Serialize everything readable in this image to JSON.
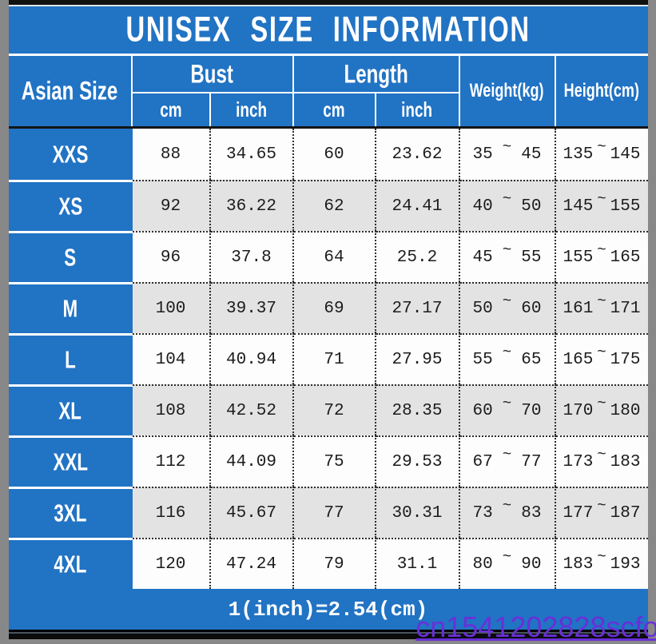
{
  "title": "UNISEX SIZE INFORMATION",
  "colors": {
    "accent_blue": "#2173c4",
    "stripe_gray": "#e4e3e3",
    "watermark_purple": "#6a2fd8",
    "bar_black": "#0b0b0b"
  },
  "table": {
    "corner_header": "Asian Size",
    "groups": [
      {
        "label": "Bust",
        "sub": [
          "cm",
          "inch"
        ]
      },
      {
        "label": "Length",
        "sub": [
          "cm",
          "inch"
        ]
      }
    ],
    "weight_header": "Weight(kg)",
    "height_header": "Height(cm)",
    "tilde": "~",
    "rows": [
      {
        "size": "XXS",
        "bust_cm": "88",
        "bust_inch": "34.65",
        "length_cm": "60",
        "length_inch": "23.62",
        "weight_min": "35",
        "weight_max": "45",
        "height_min": "135",
        "height_max": "145"
      },
      {
        "size": "XS",
        "bust_cm": "92",
        "bust_inch": "36.22",
        "length_cm": "62",
        "length_inch": "24.41",
        "weight_min": "40",
        "weight_max": "50",
        "height_min": "145",
        "height_max": "155"
      },
      {
        "size": "S",
        "bust_cm": "96",
        "bust_inch": "37.8",
        "length_cm": "64",
        "length_inch": "25.2",
        "weight_min": "45",
        "weight_max": "55",
        "height_min": "155",
        "height_max": "165"
      },
      {
        "size": "M",
        "bust_cm": "100",
        "bust_inch": "39.37",
        "length_cm": "69",
        "length_inch": "27.17",
        "weight_min": "50",
        "weight_max": "60",
        "height_min": "161",
        "height_max": "171"
      },
      {
        "size": "L",
        "bust_cm": "104",
        "bust_inch": "40.94",
        "length_cm": "71",
        "length_inch": "27.95",
        "weight_min": "55",
        "weight_max": "65",
        "height_min": "165",
        "height_max": "175"
      },
      {
        "size": "XL",
        "bust_cm": "108",
        "bust_inch": "42.52",
        "length_cm": "72",
        "length_inch": "28.35",
        "weight_min": "60",
        "weight_max": "70",
        "height_min": "170",
        "height_max": "180"
      },
      {
        "size": "XXL",
        "bust_cm": "112",
        "bust_inch": "44.09",
        "length_cm": "75",
        "length_inch": "29.53",
        "weight_min": "67",
        "weight_max": "77",
        "height_min": "173",
        "height_max": "183"
      },
      {
        "size": "3XL",
        "bust_cm": "116",
        "bust_inch": "45.67",
        "length_cm": "77",
        "length_inch": "30.31",
        "weight_min": "73",
        "weight_max": "83",
        "height_min": "177",
        "height_max": "187"
      },
      {
        "size": "4XL",
        "bust_cm": "120",
        "bust_inch": "47.24",
        "length_cm": "79",
        "length_inch": "31.1",
        "weight_min": "80",
        "weight_max": "90",
        "height_min": "183",
        "height_max": "193"
      }
    ]
  },
  "footer": {
    "note": "1(inch)=2.54(cm)"
  },
  "watermark": {
    "text": "cn1541202828scfo"
  },
  "chart_data": {
    "type": "table",
    "title": "UNISEX SIZE INFORMATION",
    "columns": [
      "Asian Size",
      "Bust (cm)",
      "Bust (inch)",
      "Length (cm)",
      "Length (inch)",
      "Weight (kg)",
      "Height (cm)"
    ],
    "rows": [
      [
        "XXS",
        88,
        34.65,
        60,
        23.62,
        "35~45",
        "135~145"
      ],
      [
        "XS",
        92,
        36.22,
        62,
        24.41,
        "40~50",
        "145~155"
      ],
      [
        "S",
        96,
        37.8,
        64,
        25.2,
        "45~55",
        "155~165"
      ],
      [
        "M",
        100,
        39.37,
        69,
        27.17,
        "50~60",
        "161~171"
      ],
      [
        "L",
        104,
        40.94,
        71,
        27.95,
        "55~65",
        "165~175"
      ],
      [
        "XL",
        108,
        42.52,
        72,
        28.35,
        "60~70",
        "170~180"
      ],
      [
        "XXL",
        112,
        44.09,
        75,
        29.53,
        "67~77",
        "173~183"
      ],
      [
        "3XL",
        116,
        45.67,
        77,
        30.31,
        "73~83",
        "177~187"
      ],
      [
        "4XL",
        120,
        47.24,
        79,
        31.1,
        "80~90",
        "183~193"
      ]
    ],
    "footnote": "1(inch)=2.54(cm)"
  }
}
